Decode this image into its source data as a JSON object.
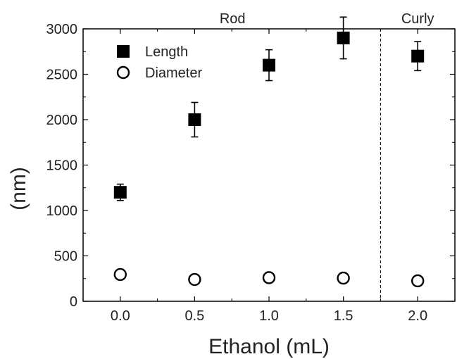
{
  "chart_data": {
    "type": "scatter",
    "title": "",
    "xlabel": "Ethanol (mL)",
    "ylabel": "(nm)",
    "xlim": [
      -0.25,
      2.25
    ],
    "ylim": [
      0,
      3000
    ],
    "x_ticks": [
      "0.0",
      "0.5",
      "1.0",
      "1.5",
      "2.0"
    ],
    "y_ticks": [
      "0",
      "500",
      "1000",
      "1500",
      "2000",
      "2500",
      "3000"
    ],
    "regions": [
      {
        "label": "Rod",
        "from": -0.25,
        "to": 1.75
      },
      {
        "label": "Curly",
        "from": 1.75,
        "to": 2.25
      }
    ],
    "divider_x": 1.75,
    "legend_position": "top-left",
    "series": [
      {
        "name": "Length",
        "marker": "filled-square",
        "color": "#000000",
        "x": [
          0.0,
          0.5,
          1.0,
          1.5,
          2.0
        ],
        "y": [
          1200,
          2000,
          2600,
          2900,
          2700
        ],
        "err_plus": [
          90,
          190,
          170,
          230,
          160
        ],
        "err_minus": [
          90,
          190,
          170,
          230,
          160
        ]
      },
      {
        "name": "Diameter",
        "marker": "open-circle",
        "color": "#000000",
        "x": [
          0.0,
          0.5,
          1.0,
          1.5,
          2.0
        ],
        "y": [
          295,
          240,
          260,
          255,
          225
        ],
        "err_plus": [
          40,
          15,
          30,
          20,
          30
        ],
        "err_minus": [
          40,
          15,
          30,
          20,
          30
        ]
      }
    ]
  }
}
